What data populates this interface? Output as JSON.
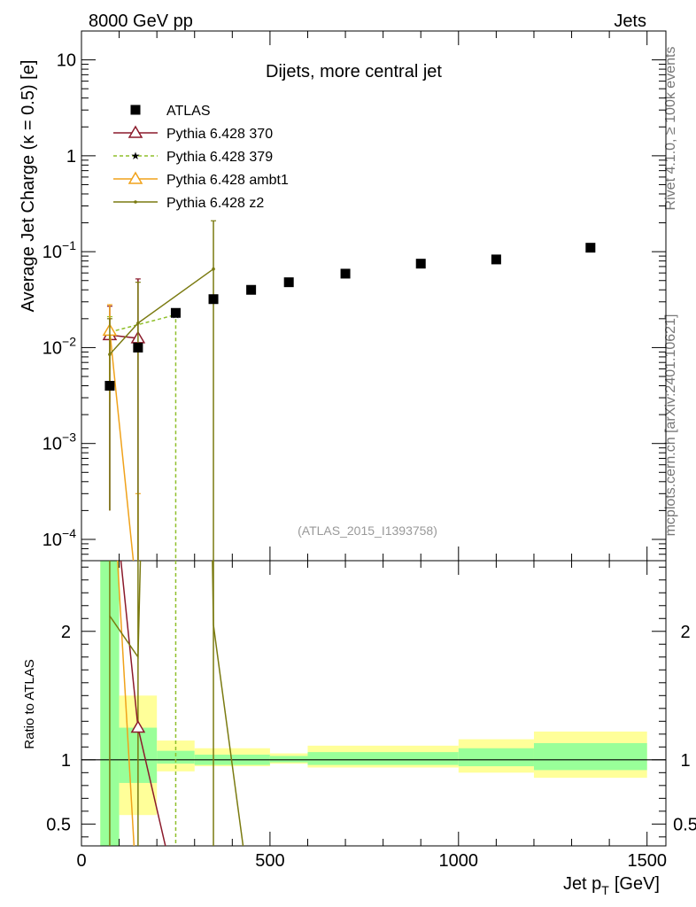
{
  "header": {
    "left": "8000 GeV pp",
    "right": "Jets",
    "side_top": "Rivet 4.1.0, ≥ 100k events",
    "side_bottom": "mcplots.cern.ch [arXiv:2401.10621]"
  },
  "chart_data": {
    "type": "scatter",
    "title": "Dijets, more central jet",
    "watermark": "(ATLAS_2015_I1393758)",
    "ylabel": "Average Jet Charge (κ = 0.5) [e]",
    "xlabel": "Jet p_T [GeV]",
    "xlabel_main": "Jet p",
    "xlabel_sub": "T",
    "xlabel_unit": "[GeV]",
    "xlim": [
      0,
      1550
    ],
    "ylim_log": [
      6e-05,
      20
    ],
    "x_ticks": [
      0,
      500,
      1000,
      1500
    ],
    "x_tick_labels": [
      "0",
      "500",
      "1000",
      "1500"
    ],
    "y_ticks": [
      0.0001,
      0.001,
      0.01,
      0.1,
      1,
      10
    ],
    "y_tick_labels": [
      {
        "base": "10",
        "exp": "−4"
      },
      {
        "base": "10",
        "exp": "−3"
      },
      {
        "base": "10",
        "exp": "−2"
      },
      {
        "base": "10",
        "exp": "−1"
      },
      {
        "base": "1",
        "exp": ""
      },
      {
        "base": "10",
        "exp": ""
      }
    ],
    "legend": [
      {
        "name": "ATLAS",
        "marker": "square",
        "color": "#000000",
        "dash": false
      },
      {
        "name": "Pythia 6.428 370",
        "marker": "triangle",
        "color": "#8b1a2b",
        "dash": false
      },
      {
        "name": "Pythia 6.428 379",
        "marker": "star",
        "color": "#8fbf2a",
        "dash": true
      },
      {
        "name": "Pythia 6.428 ambt1",
        "marker": "triangle",
        "color": "#f0a21a",
        "dash": false
      },
      {
        "name": "Pythia 6.428 z2",
        "marker": "dot",
        "color": "#7a7a10",
        "dash": false
      }
    ],
    "data": {
      "x": [
        75,
        150,
        250,
        350,
        450,
        550,
        700,
        900,
        1100,
        1350
      ],
      "y": [
        0.004,
        0.01,
        0.023,
        0.032,
        0.04,
        0.048,
        0.059,
        0.075,
        0.083,
        0.11
      ]
    },
    "series": [
      {
        "name": "Pythia 6.428 370",
        "color": "#8b1a2b",
        "points": [
          {
            "x": 75,
            "y": 0.0135,
            "lo": 0.0002,
            "hi": 0.027
          },
          {
            "x": 150,
            "y": 0.0125,
            "lo": 1e-05,
            "hi": 0.052
          }
        ]
      },
      {
        "name": "Pythia 6.428 379",
        "color": "#8fbf2a",
        "points": [
          {
            "x": 75,
            "y": 0.0145,
            "lo": 0.004,
            "hi": 0.021
          },
          {
            "x": 250,
            "y": 0.022,
            "lo": 1e-05,
            "hi": 0.023
          }
        ]
      },
      {
        "name": "Pythia 6.428 ambt1",
        "color": "#f0a21a",
        "points": [
          {
            "x": 75,
            "y": 0.015,
            "lo": 0.0027,
            "hi": 0.028
          },
          {
            "x": 150,
            "y": 2e-05,
            "lo": 1e-05,
            "hi": 0.0003
          }
        ]
      },
      {
        "name": "Pythia 6.428 z2",
        "color": "#7a7a10",
        "points": [
          {
            "x": 75,
            "y": 0.0085,
            "lo": 0.0002,
            "hi": 0.02
          },
          {
            "x": 150,
            "y": 0.018,
            "lo": 1e-05,
            "hi": 0.048
          },
          {
            "x": 350,
            "y": 0.066,
            "lo": 1e-05,
            "hi": 0.21
          }
        ]
      }
    ],
    "ratio": {
      "ylabel": "Ratio to ATLAS",
      "ylim": [
        0.33,
        2.55
      ],
      "y_ticks": [
        0.5,
        1,
        2
      ],
      "y_tick_labels": [
        "0.5",
        "1",
        "2"
      ],
      "bins": [
        {
          "x0": 50,
          "x1": 100,
          "green": [
            0.2,
            2.8
          ],
          "yellow": [
            0.2,
            2.8
          ]
        },
        {
          "x0": 100,
          "x1": 200,
          "green": [
            0.82,
            1.25
          ],
          "yellow": [
            0.57,
            1.5
          ]
        },
        {
          "x0": 200,
          "x1": 300,
          "green": [
            0.97,
            1.07
          ],
          "yellow": [
            0.91,
            1.15
          ]
        },
        {
          "x0": 300,
          "x1": 500,
          "green": [
            0.96,
            1.04
          ],
          "yellow": [
            0.95,
            1.09
          ]
        },
        {
          "x0": 500,
          "x1": 600,
          "green": [
            0.98,
            1.03
          ],
          "yellow": [
            0.97,
            1.05
          ]
        },
        {
          "x0": 600,
          "x1": 1000,
          "green": [
            0.96,
            1.06
          ],
          "yellow": [
            0.94,
            1.11
          ]
        },
        {
          "x0": 1000,
          "x1": 1200,
          "green": [
            0.95,
            1.09
          ],
          "yellow": [
            0.9,
            1.16
          ]
        },
        {
          "x0": 1200,
          "x1": 1500,
          "green": [
            0.92,
            1.13
          ],
          "yellow": [
            0.86,
            1.22
          ]
        }
      ],
      "series": [
        {
          "name": "Pythia 6.428 370",
          "color": "#8b1a2b",
          "points": [
            {
              "x": 75,
              "y": 3.4
            },
            {
              "x": 150,
              "y": 1.25
            },
            {
              "x": 225,
              "y": 0.3
            }
          ],
          "markers": [
            {
              "x": 150,
              "y": 1.25,
              "shape": "triangle"
            }
          ]
        },
        {
          "name": "Pythia 6.428 ambt1",
          "color": "#f0a21a",
          "points": [
            {
              "x": 75,
              "y": 3.6
            },
            {
              "x": 140,
              "y": 0.3
            }
          ],
          "markers": []
        },
        {
          "name": "Pythia 6.428 z2",
          "color": "#7a7a10",
          "points": [
            {
              "x": 75,
              "y": 2.12
            },
            {
              "x": 150,
              "y": 1.8
            },
            {
              "x": 160,
              "y": 3.0
            }
          ],
          "markers": []
        },
        {
          "name": "Pythia 6.428 z2 tail",
          "color": "#7a7a10",
          "points": [
            {
              "x": 345,
              "y": 3.0
            },
            {
              "x": 350,
              "y": 2.05
            },
            {
              "x": 430,
              "y": 0.3
            }
          ],
          "markers": []
        }
      ],
      "vlines": [
        {
          "x": 75,
          "color": "#7a7a10",
          "dash": false
        },
        {
          "x": 150,
          "color": "#7a7a10",
          "dash": false
        },
        {
          "x": 250,
          "color": "#8fbf2a",
          "dash": true
        },
        {
          "x": 350,
          "color": "#7a7a10",
          "dash": false
        }
      ]
    }
  }
}
